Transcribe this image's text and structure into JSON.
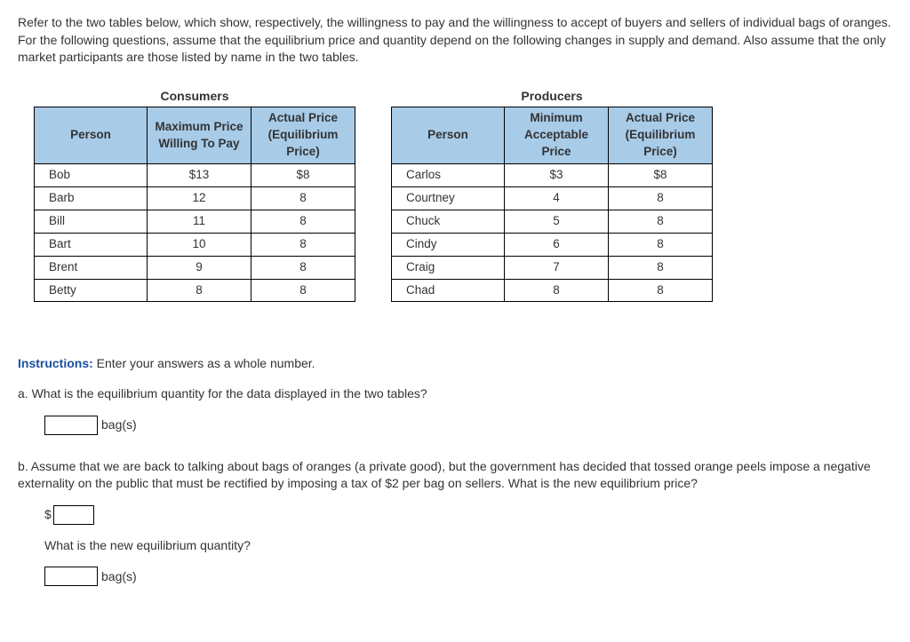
{
  "intro": "Refer to the two tables below, which show, respectively, the willingness to pay and the willingness to accept of buyers and sellers of individual bags of oranges. For the following questions, assume that the equilibrium price and quantity depend on the following changes in supply and demand. Also assume that the only market participants are those listed by name in the two tables.",
  "consumers": {
    "title": "Consumers",
    "headers": {
      "person": "Person",
      "col2": "Maximum Price Willing To Pay",
      "col3": "Actual Price (Equilibrium Price)"
    },
    "rows": [
      {
        "person": "Bob",
        "c2": "$13",
        "c3": "$8"
      },
      {
        "person": "Barb",
        "c2": "12",
        "c3": "8"
      },
      {
        "person": "Bill",
        "c2": "11",
        "c3": "8"
      },
      {
        "person": "Bart",
        "c2": "10",
        "c3": "8"
      },
      {
        "person": "Brent",
        "c2": "9",
        "c3": "8"
      },
      {
        "person": "Betty",
        "c2": "8",
        "c3": "8"
      }
    ]
  },
  "producers": {
    "title": "Producers",
    "headers": {
      "person": "Person",
      "col2": "Minimum Acceptable Price",
      "col3": "Actual Price (Equilibrium Price)"
    },
    "rows": [
      {
        "person": "Carlos",
        "c2": "$3",
        "c3": "$8"
      },
      {
        "person": "Courtney",
        "c2": "4",
        "c3": "8"
      },
      {
        "person": "Chuck",
        "c2": "5",
        "c3": "8"
      },
      {
        "person": "Cindy",
        "c2": "6",
        "c3": "8"
      },
      {
        "person": "Craig",
        "c2": "7",
        "c3": "8"
      },
      {
        "person": "Chad",
        "c2": "8",
        "c3": "8"
      }
    ]
  },
  "instructions": {
    "label": "Instructions:",
    "text": " Enter your answers as a whole number."
  },
  "qa": {
    "a_text": "a. What is the equilibrium quantity for the data displayed in the two tables?",
    "a_unit": "bag(s)",
    "b_text": "b. Assume that we are back to talking about bags of oranges (a private good), but the government has decided that tossed orange peels impose a negative externality on the public that must be rectified by imposing a tax of $2 per bag on sellers. What is the new equilibrium price?",
    "dollar": "$",
    "b_sub": "What is the new equilibrium quantity?",
    "b_unit": "bag(s)"
  },
  "style": {
    "header_bg": "#a8cbe8",
    "instr_color": "#1a4fa0"
  }
}
